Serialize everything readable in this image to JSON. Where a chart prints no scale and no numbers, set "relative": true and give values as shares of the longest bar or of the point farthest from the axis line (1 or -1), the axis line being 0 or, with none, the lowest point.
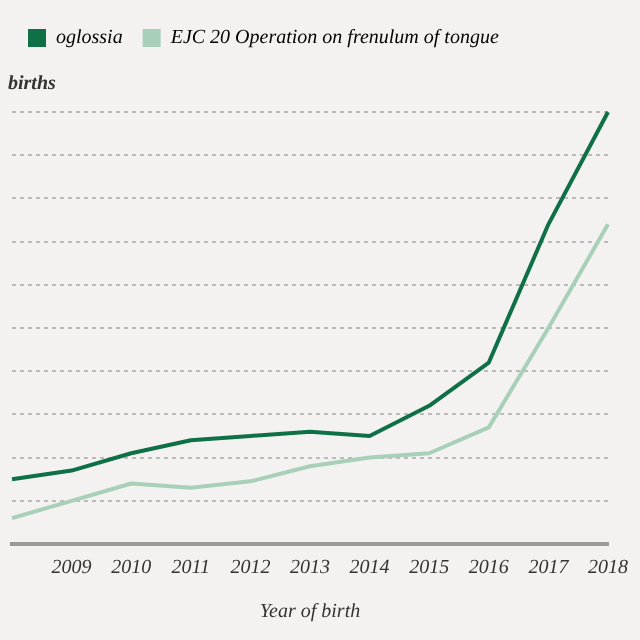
{
  "chart_data": {
    "type": "line",
    "ylabel": "births",
    "xlabel": "Year of birth",
    "relative": true,
    "grid": "y",
    "legend": "top left",
    "marker": "none",
    "line_style": "solid",
    "categories": [
      null,
      "2009",
      "2010",
      "2011",
      "2012",
      "2013",
      "2014",
      "2015",
      "2016",
      "2017",
      "2018"
    ],
    "series": [
      {
        "name": "oglossia",
        "color": "#0f7048",
        "values": [
          0.15,
          0.17,
          0.21,
          0.24,
          0.25,
          0.26,
          0.25,
          0.32,
          0.42,
          0.74,
          1
        ]
      },
      {
        "name": "EJC 20 Operation on frenulum of tongue",
        "color": "#a8d0b8",
        "values": [
          0.06,
          0.1,
          0.14,
          0.13,
          0.145,
          0.18,
          0.2,
          0.21,
          0.27,
          0.5,
          0.74
        ]
      }
    ]
  }
}
